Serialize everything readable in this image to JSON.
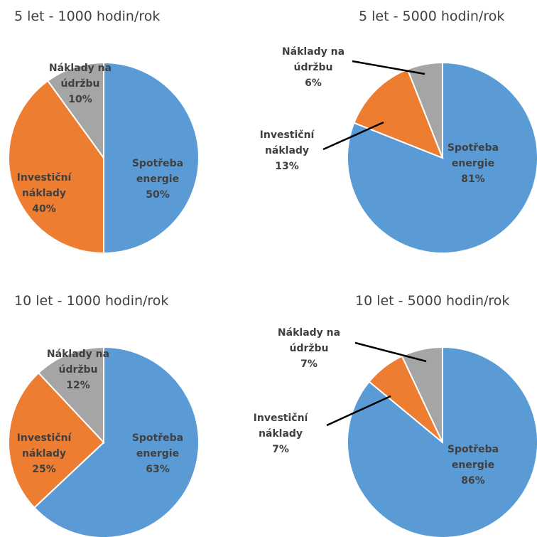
{
  "chart_data": [
    {
      "type": "pie",
      "title": "5 let - 1000 hodin/rok",
      "categories": [
        "Spotřeba energie",
        "Investiční náklady",
        "Náklady na údržbu"
      ],
      "values": [
        50,
        40,
        10
      ],
      "value_labels": [
        "50%",
        "40%",
        "10%"
      ],
      "colors": [
        "#5b9bd5",
        "#ed7d31",
        "#a5a5a5"
      ]
    },
    {
      "type": "pie",
      "title": "5 let - 5000 hodin/rok",
      "categories": [
        "Spotřeba energie",
        "Investiční náklady",
        "Náklady na údržbu"
      ],
      "values": [
        81,
        13,
        6
      ],
      "value_labels": [
        "81%",
        "13%",
        "6%"
      ],
      "colors": [
        "#5b9bd5",
        "#ed7d31",
        "#a5a5a5"
      ]
    },
    {
      "type": "pie",
      "title": "10 let - 1000 hodin/rok",
      "categories": [
        "Spotřeba energie",
        "Investiční náklady",
        "Náklady na údržbu"
      ],
      "values": [
        63,
        25,
        12
      ],
      "value_labels": [
        "63%",
        "25%",
        "12%"
      ],
      "colors": [
        "#5b9bd5",
        "#ed7d31",
        "#a5a5a5"
      ]
    },
    {
      "type": "pie",
      "title": "10 let - 5000 hodin/rok",
      "categories": [
        "Spotřeba energie",
        "Investiční náklady",
        "Náklady na údržbu"
      ],
      "values": [
        86,
        7,
        7
      ],
      "value_labels": [
        "86%",
        "7%",
        "7%"
      ],
      "colors": [
        "#5b9bd5",
        "#ed7d31",
        "#a5a5a5"
      ]
    }
  ]
}
